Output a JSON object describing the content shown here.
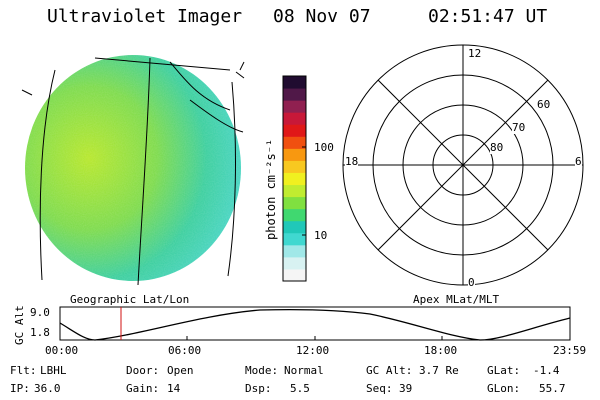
{
  "header": {
    "title": "Ultraviolet Imager",
    "date": "08 Nov 07",
    "time": "02:51:47 UT"
  },
  "colorbar": {
    "unit_label": "photon cm⁻²s⁻¹",
    "ticks": [
      "100",
      "10"
    ],
    "colors": [
      "#f5f5f5",
      "#d8f2f2",
      "#a0e8e8",
      "#40d8d0",
      "#20c8b8",
      "#40d870",
      "#80e040",
      "#c0ec30",
      "#f0f020",
      "#f8c820",
      "#f89810",
      "#f05010",
      "#e01818",
      "#c81838",
      "#902050",
      "#501848",
      "#200c30"
    ]
  },
  "polar": {
    "mlt_labels": {
      "top": "12",
      "left": "18",
      "right": "6",
      "bottom": "0"
    },
    "lat_labels": [
      "60",
      "70",
      "80"
    ]
  },
  "timeline": {
    "left_label": "Geographic Lat/Lon",
    "right_label": "Apex MLat/MLT",
    "axis_title": "GC Alt",
    "y_ticks": [
      "9.0",
      "1.8"
    ],
    "x_ticks": [
      "00:00",
      "06:00",
      "12:00",
      "18:00",
      "23:59"
    ],
    "marker_time": "02:51"
  },
  "info": {
    "flt_label": "Flt:",
    "flt_value": "LBHL",
    "door_label": "Door:",
    "door_value": "Open",
    "mode_label": "Mode:",
    "mode_value": "Normal",
    "gcalt_label": "GC Alt:",
    "gcalt_value": "3.7 Re",
    "glat_label": "GLat:",
    "glat_value": "-1.4",
    "ip_label": "IP:",
    "ip_value": "36.0",
    "gain_label": "Gain:",
    "gain_value": "14",
    "dsp_label": "Dsp:",
    "dsp_value": "5.5",
    "seq_label": "Seq:",
    "seq_value": "39",
    "glon_label": "GLon:",
    "glon_value": "55.7"
  }
}
